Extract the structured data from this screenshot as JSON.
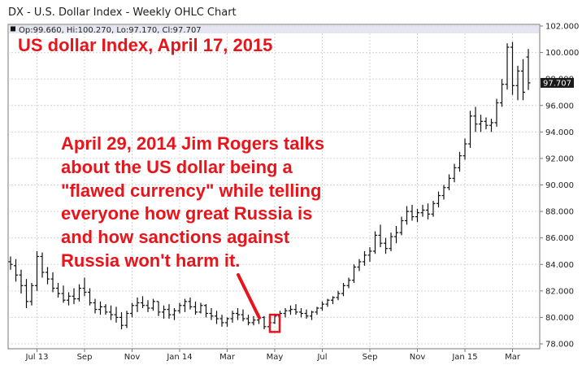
{
  "chart_data": {
    "type": "ohlc",
    "title": "DX - U.S. Dollar Index - Weekly OHLC Chart",
    "ohlc_readout": "Op:99.660, Hi:100.270, Lo:97.170, Cl:97.707",
    "last_price_label": "97.707",
    "last_price": 97.707,
    "ylim": [
      78.0,
      102.0
    ],
    "y_ticks": [
      "102.000",
      "100.000",
      "98.000",
      "96.000",
      "94.000",
      "92.000",
      "90.000",
      "88.000",
      "86.000",
      "84.000",
      "82.000",
      "80.000",
      "78.000"
    ],
    "y_tick_values": [
      102,
      100,
      98,
      96,
      94,
      92,
      90,
      88,
      86,
      84,
      82,
      80,
      78
    ],
    "x_ticks": [
      "Jul 13",
      "Sep",
      "Nov",
      "Jan 14",
      "Mar",
      "May",
      "Jul",
      "Sep",
      "Nov",
      "Jan 15",
      "Mar"
    ],
    "x_tick_week_index": [
      5,
      14,
      23,
      32,
      41,
      50,
      59,
      68,
      77,
      86,
      95
    ],
    "grid": true,
    "series": [
      {
        "values": [
          [
            84.2,
            84.6,
            83.6,
            84.0
          ],
          [
            83.9,
            84.4,
            82.7,
            83.2
          ],
          [
            83.2,
            83.6,
            81.8,
            82.4
          ],
          [
            82.4,
            82.9,
            80.7,
            81.2
          ],
          [
            81.2,
            82.6,
            80.9,
            82.4
          ],
          [
            82.4,
            85.0,
            82.0,
            84.6
          ],
          [
            84.6,
            84.9,
            83.0,
            83.4
          ],
          [
            83.4,
            83.8,
            82.5,
            82.9
          ],
          [
            82.9,
            83.4,
            81.9,
            82.2
          ],
          [
            82.2,
            82.6,
            81.5,
            81.8
          ],
          [
            81.8,
            82.4,
            81.1,
            81.3
          ],
          [
            81.3,
            81.9,
            80.9,
            81.6
          ],
          [
            81.6,
            82.2,
            81.0,
            81.4
          ],
          [
            81.4,
            82.5,
            81.2,
            82.2
          ],
          [
            82.2,
            83.0,
            81.6,
            81.9
          ],
          [
            81.9,
            82.2,
            80.9,
            81.1
          ],
          [
            81.1,
            81.4,
            80.3,
            80.6
          ],
          [
            80.6,
            81.2,
            80.2,
            80.8
          ],
          [
            80.8,
            81.0,
            80.2,
            80.4
          ],
          [
            80.4,
            80.9,
            79.8,
            80.2
          ],
          [
            80.2,
            80.8,
            79.6,
            80.0
          ],
          [
            80.0,
            80.4,
            79.1,
            79.4
          ],
          [
            79.4,
            80.5,
            79.2,
            80.3
          ],
          [
            80.3,
            81.1,
            80.0,
            80.9
          ],
          [
            80.9,
            81.5,
            80.4,
            81.1
          ],
          [
            81.1,
            81.6,
            80.7,
            80.9
          ],
          [
            80.9,
            81.3,
            80.4,
            80.7
          ],
          [
            80.7,
            81.4,
            80.5,
            81.2
          ],
          [
            81.2,
            81.2,
            80.1,
            80.4
          ],
          [
            80.4,
            80.9,
            79.9,
            80.6
          ],
          [
            80.6,
            81.0,
            79.9,
            80.2
          ],
          [
            80.2,
            80.7,
            79.8,
            80.5
          ],
          [
            80.5,
            81.1,
            80.3,
            80.9
          ],
          [
            80.9,
            81.4,
            80.4,
            81.2
          ],
          [
            81.2,
            81.5,
            80.6,
            80.8
          ],
          [
            80.8,
            81.2,
            80.2,
            80.4
          ],
          [
            80.4,
            81.1,
            80.3,
            80.9
          ],
          [
            80.9,
            81.0,
            80.0,
            80.3
          ],
          [
            80.3,
            80.7,
            79.8,
            80.1
          ],
          [
            80.1,
            80.5,
            79.5,
            79.9
          ],
          [
            79.9,
            80.2,
            79.3,
            79.6
          ],
          [
            79.6,
            80.0,
            79.3,
            79.9
          ],
          [
            79.9,
            80.5,
            79.6,
            80.3
          ],
          [
            80.3,
            80.7,
            79.8,
            80.2
          ],
          [
            80.2,
            80.6,
            79.7,
            79.9
          ],
          [
            79.9,
            80.2,
            79.4,
            79.6
          ],
          [
            79.6,
            80.1,
            79.4,
            79.8
          ],
          [
            79.8,
            80.3,
            79.5,
            80.0
          ],
          [
            80.0,
            80.1,
            79.1,
            79.3
          ],
          [
            79.3,
            79.7,
            79.0,
            79.6
          ],
          [
            79.6,
            80.2,
            79.5,
            80.1
          ],
          [
            80.1,
            80.5,
            79.8,
            80.3
          ],
          [
            80.3,
            80.7,
            80.0,
            80.5
          ],
          [
            80.5,
            80.9,
            80.2,
            80.6
          ],
          [
            80.6,
            81.0,
            80.2,
            80.4
          ],
          [
            80.4,
            80.7,
            80.0,
            80.3
          ],
          [
            80.3,
            80.6,
            79.9,
            80.1
          ],
          [
            80.1,
            80.5,
            79.8,
            80.4
          ],
          [
            80.4,
            80.8,
            80.2,
            80.7
          ],
          [
            80.7,
            81.2,
            80.5,
            81.0
          ],
          [
            81.0,
            81.4,
            80.8,
            81.3
          ],
          [
            81.3,
            81.6,
            81.0,
            81.5
          ],
          [
            81.5,
            82.0,
            81.3,
            81.8
          ],
          [
            81.8,
            82.6,
            81.6,
            82.4
          ],
          [
            82.4,
            83.0,
            82.2,
            82.8
          ],
          [
            82.8,
            84.0,
            82.6,
            83.8
          ],
          [
            83.8,
            84.4,
            83.5,
            84.2
          ],
          [
            84.2,
            85.0,
            83.9,
            84.7
          ],
          [
            84.7,
            85.3,
            84.2,
            85.0
          ],
          [
            85.0,
            86.5,
            84.8,
            86.2
          ],
          [
            86.2,
            87.0,
            85.3,
            85.6
          ],
          [
            85.6,
            86.0,
            84.8,
            85.2
          ],
          [
            85.2,
            86.4,
            85.0,
            86.1
          ],
          [
            86.1,
            86.9,
            85.6,
            86.4
          ],
          [
            86.4,
            87.6,
            86.2,
            87.3
          ],
          [
            87.3,
            88.4,
            87.0,
            88.0
          ],
          [
            88.0,
            88.5,
            87.3,
            87.6
          ],
          [
            87.6,
            88.2,
            87.2,
            87.9
          ],
          [
            87.9,
            88.5,
            87.6,
            88.1
          ],
          [
            88.1,
            88.6,
            87.4,
            87.8
          ],
          [
            87.8,
            88.8,
            87.6,
            88.6
          ],
          [
            88.6,
            89.5,
            88.3,
            89.2
          ],
          [
            89.2,
            90.0,
            88.9,
            89.8
          ],
          [
            89.8,
            90.8,
            89.6,
            90.5
          ],
          [
            90.5,
            91.6,
            90.2,
            91.3
          ],
          [
            91.3,
            92.5,
            91.0,
            92.2
          ],
          [
            92.2,
            93.5,
            91.9,
            93.1
          ],
          [
            93.1,
            95.6,
            92.8,
            95.2
          ],
          [
            95.2,
            95.9,
            94.0,
            94.6
          ],
          [
            94.6,
            95.3,
            94.0,
            94.8
          ],
          [
            94.8,
            95.1,
            94.2,
            94.5
          ],
          [
            94.5,
            95.0,
            94.0,
            94.7
          ],
          [
            94.7,
            96.5,
            94.4,
            96.2
          ],
          [
            96.2,
            98.0,
            95.9,
            97.6
          ],
          [
            97.6,
            100.7,
            97.2,
            100.4
          ],
          [
            100.4,
            100.8,
            96.8,
            97.5
          ],
          [
            97.5,
            99.0,
            96.4,
            98.6
          ],
          [
            98.6,
            99.5,
            96.4,
            97.0
          ],
          [
            99.66,
            100.27,
            97.17,
            97.707
          ]
        ]
      }
    ],
    "annotations": {
      "date_title": "US dollar Index, April 17, 2015",
      "note_lines": [
        "April 29, 2014 Jim Rogers talks",
        "about the US dollar being a",
        "\"flawed currency\" while telling",
        "everyone how great Russia is",
        "and how sanctions against",
        "Russia won't harm it."
      ],
      "highlight_week_index": 50,
      "highlight_y_range": [
        78.9,
        80.2
      ]
    },
    "colors": {
      "bars": "#111111",
      "annotation": "#e8141b",
      "grid": "#d6d6d6",
      "header_band": "#e6e6f2",
      "price_tag_bg": "#1a1a1a",
      "price_tag_fg": "#ffffff"
    }
  }
}
